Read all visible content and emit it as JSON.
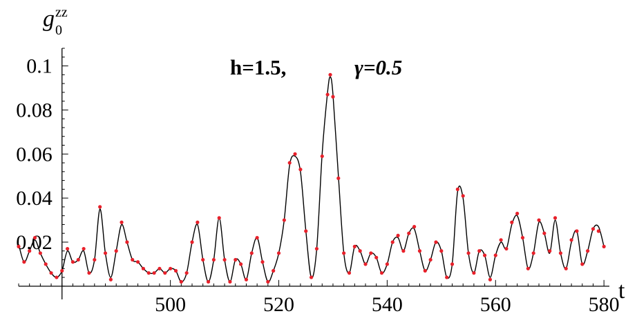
{
  "chart_data": {
    "type": "line",
    "title": "",
    "annotation": {
      "h_text": "h=1.5,",
      "gamma_text": "γ=0.5"
    },
    "xlabel": "t",
    "ylabel": {
      "base": "g",
      "sub": "0",
      "sup": "zz"
    },
    "xlim": [
      472,
      581
    ],
    "ylim": [
      -0.006,
      0.108
    ],
    "x_origin": 480,
    "y_origin": 0,
    "xticks": [
      500,
      520,
      540,
      560,
      580
    ],
    "yticks": [
      0.02,
      0.04,
      0.06,
      0.08,
      0.1
    ],
    "ytick_labels": [
      "0.02",
      "0.04",
      "0.06",
      "0.08",
      "0.1"
    ],
    "series": [
      {
        "style": "line",
        "color": "#000000",
        "x": [
          472,
          473,
          474,
          475,
          476,
          477,
          478,
          479,
          480,
          481,
          482,
          483,
          484,
          485,
          486,
          487,
          488,
          489,
          490,
          491,
          492,
          493,
          494,
          495,
          496,
          497,
          498,
          499,
          500,
          501,
          502,
          503,
          504,
          505,
          506,
          507,
          508,
          509,
          510,
          511,
          512,
          513,
          514,
          515,
          516,
          517,
          518,
          519,
          520,
          521,
          522,
          523,
          524,
          525,
          526,
          527,
          528,
          529,
          529.5,
          530,
          531,
          532,
          533,
          534,
          535,
          536,
          537,
          538,
          539,
          540,
          541,
          542,
          543,
          544,
          545,
          546,
          547,
          548,
          549,
          550,
          551,
          552,
          553,
          554,
          555,
          556,
          557,
          558,
          559,
          560,
          561,
          562,
          563,
          564,
          565,
          566,
          567,
          568,
          569,
          570,
          571,
          572,
          573,
          574,
          575,
          576,
          577,
          578,
          579,
          580
        ],
        "y": [
          0.019,
          0.011,
          0.016,
          0.021,
          0.015,
          0.01,
          0.006,
          0.004,
          0.007,
          0.016,
          0.011,
          0.012,
          0.016,
          0.006,
          0.012,
          0.035,
          0.015,
          0.004,
          0.016,
          0.028,
          0.02,
          0.012,
          0.011,
          0.008,
          0.006,
          0.006,
          0.008,
          0.006,
          0.008,
          0.007,
          0.002,
          0.006,
          0.02,
          0.028,
          0.012,
          0.002,
          0.012,
          0.031,
          0.012,
          0.002,
          0.012,
          0.01,
          0.003,
          0.015,
          0.022,
          0.011,
          0.002,
          0.007,
          0.015,
          0.03,
          0.055,
          0.059,
          0.052,
          0.025,
          0.004,
          0.017,
          0.06,
          0.088,
          0.095,
          0.087,
          0.05,
          0.015,
          0.006,
          0.018,
          0.016,
          0.01,
          0.015,
          0.013,
          0.006,
          0.01,
          0.02,
          0.022,
          0.016,
          0.024,
          0.026,
          0.016,
          0.007,
          0.012,
          0.02,
          0.016,
          0.004,
          0.01,
          0.043,
          0.04,
          0.015,
          0.006,
          0.016,
          0.014,
          0.004,
          0.014,
          0.02,
          0.017,
          0.028,
          0.032,
          0.022,
          0.008,
          0.015,
          0.029,
          0.024,
          0.015,
          0.03,
          0.015,
          0.008,
          0.02,
          0.025,
          0.01,
          0.016,
          0.026,
          0.027,
          0.018
        ]
      },
      {
        "style": "points",
        "color": "#e8202a",
        "x": [
          472,
          473,
          474,
          475,
          476,
          477,
          478,
          479,
          480,
          481,
          482,
          483,
          484,
          485,
          486,
          487,
          488,
          489,
          490,
          491,
          492,
          493,
          494,
          495,
          496,
          497,
          498,
          499,
          500,
          501,
          502,
          503,
          504,
          505,
          506,
          507,
          508,
          509,
          510,
          511,
          512,
          513,
          514,
          515,
          516,
          517,
          518,
          519,
          520,
          521,
          522,
          523,
          524,
          525,
          526,
          527,
          528,
          529,
          529.5,
          530,
          531,
          532,
          533,
          534,
          535,
          536,
          537,
          538,
          539,
          540,
          541,
          542,
          543,
          544,
          545,
          546,
          547,
          548,
          549,
          550,
          551,
          552,
          553,
          554,
          555,
          556,
          557,
          558,
          559,
          560,
          561,
          562,
          563,
          564,
          565,
          566,
          567,
          568,
          569,
          570,
          571,
          572,
          573,
          574,
          575,
          576,
          577,
          578,
          579,
          580
        ],
        "y": [
          0.018,
          0.011,
          0.016,
          0.022,
          0.015,
          0.01,
          0.006,
          0.004,
          0.007,
          0.017,
          0.011,
          0.012,
          0.017,
          0.006,
          0.012,
          0.036,
          0.015,
          0.003,
          0.016,
          0.029,
          0.02,
          0.012,
          0.011,
          0.008,
          0.006,
          0.006,
          0.008,
          0.006,
          0.008,
          0.007,
          0.002,
          0.006,
          0.02,
          0.029,
          0.012,
          0.002,
          0.012,
          0.031,
          0.012,
          0.002,
          0.012,
          0.01,
          0.003,
          0.015,
          0.022,
          0.011,
          0.002,
          0.007,
          0.015,
          0.03,
          0.056,
          0.06,
          0.053,
          0.025,
          0.004,
          0.017,
          0.059,
          0.087,
          0.096,
          0.086,
          0.049,
          0.015,
          0.006,
          0.018,
          0.016,
          0.01,
          0.015,
          0.013,
          0.006,
          0.01,
          0.02,
          0.023,
          0.016,
          0.024,
          0.027,
          0.016,
          0.007,
          0.012,
          0.02,
          0.016,
          0.004,
          0.01,
          0.044,
          0.041,
          0.015,
          0.006,
          0.016,
          0.014,
          0.003,
          0.014,
          0.021,
          0.017,
          0.029,
          0.033,
          0.022,
          0.008,
          0.015,
          0.03,
          0.024,
          0.016,
          0.031,
          0.015,
          0.008,
          0.021,
          0.025,
          0.01,
          0.016,
          0.026,
          0.025,
          0.018
        ]
      }
    ]
  }
}
